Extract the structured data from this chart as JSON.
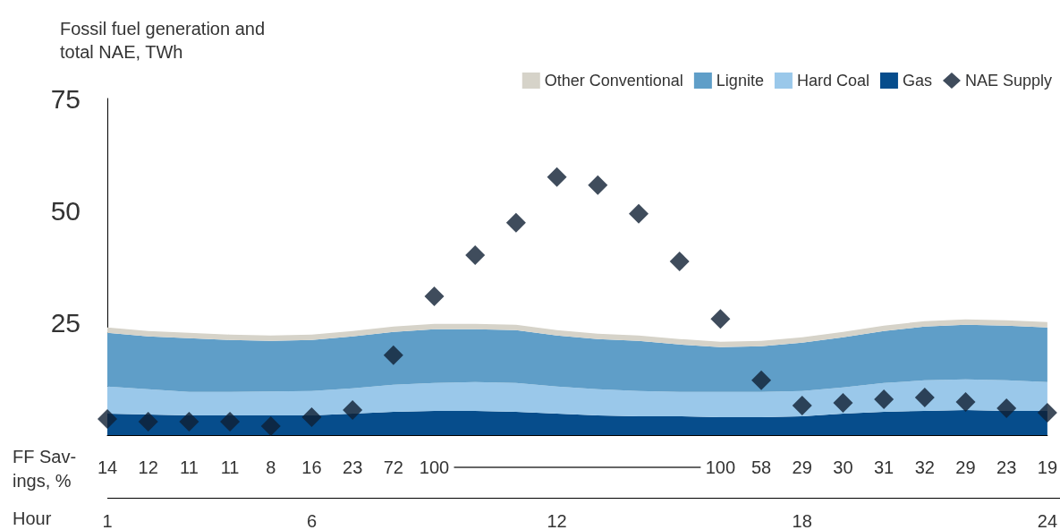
{
  "chart_data": {
    "type": "area",
    "title": "Fossil fuel generation and\ntotal NAE, TWh",
    "xlabel": "Hour",
    "stacked": true,
    "x": [
      1,
      2,
      3,
      4,
      5,
      6,
      7,
      8,
      9,
      10,
      11,
      12,
      13,
      14,
      15,
      16,
      17,
      18,
      19,
      20,
      21,
      22,
      23,
      24
    ],
    "xlim": [
      1,
      24
    ],
    "xticks": [
      1,
      6,
      12,
      18,
      24
    ],
    "ylim": [
      0,
      75
    ],
    "yticks": [
      25,
      50,
      75
    ],
    "grid": false,
    "legend": "top right",
    "series": [
      {
        "name": "Gas",
        "color": "#064d8c",
        "values": [
          4.8,
          4.6,
          4.4,
          4.4,
          4.4,
          4.4,
          4.8,
          5.2,
          5.4,
          5.4,
          5.2,
          4.8,
          4.4,
          4.2,
          4.2,
          4.0,
          4.0,
          4.2,
          4.8,
          5.2,
          5.4,
          5.6,
          5.4,
          5.4
        ]
      },
      {
        "name": "Hard Coal",
        "color": "#9ac8ea",
        "values": [
          6.0,
          5.6,
          5.2,
          5.2,
          5.3,
          5.4,
          5.6,
          6.0,
          6.2,
          6.4,
          6.4,
          6.0,
          5.8,
          5.6,
          5.4,
          5.6,
          5.6,
          5.6,
          5.8,
          6.4,
          6.8,
          6.8,
          6.8,
          6.4
        ]
      },
      {
        "name": "Lignite",
        "color": "#5f9ec8",
        "values": [
          12.0,
          11.8,
          12.0,
          11.6,
          11.3,
          11.4,
          11.6,
          11.8,
          12.0,
          11.8,
          11.8,
          11.4,
          11.2,
          11.2,
          10.6,
          10.0,
          10.2,
          10.8,
          11.2,
          11.6,
          12.0,
          12.2,
          12.2,
          12.2
        ]
      },
      {
        "name": "Other Conventional",
        "color": "#d6d3c9",
        "values": [
          1.2,
          1.2,
          1.2,
          1.2,
          1.2,
          1.2,
          1.2,
          1.2,
          1.2,
          1.2,
          1.2,
          1.2,
          1.2,
          1.2,
          1.2,
          1.2,
          1.2,
          1.2,
          1.2,
          1.2,
          1.2,
          1.2,
          1.2,
          1.2
        ]
      },
      {
        "name": "NAE Supply",
        "type": "scatter",
        "marker": "diamond",
        "color": "#0f1f33",
        "values": [
          3.6,
          3.0,
          3.0,
          3.0,
          2.0,
          4.0,
          5.6,
          17.8,
          30.9,
          40.1,
          47.3,
          57.5,
          55.7,
          49.3,
          38.7,
          25.9,
          12.2,
          6.6,
          7.2,
          8.0,
          8.4,
          7.4,
          6.0,
          5.0
        ]
      }
    ],
    "annotations": [
      "FF Sav-\nings, %",
      "14",
      "12",
      "11",
      "11",
      "8",
      "16",
      "23",
      "72",
      "100",
      "100",
      "58",
      "29",
      "30",
      "31",
      "32",
      "29",
      "23",
      "19"
    ]
  }
}
